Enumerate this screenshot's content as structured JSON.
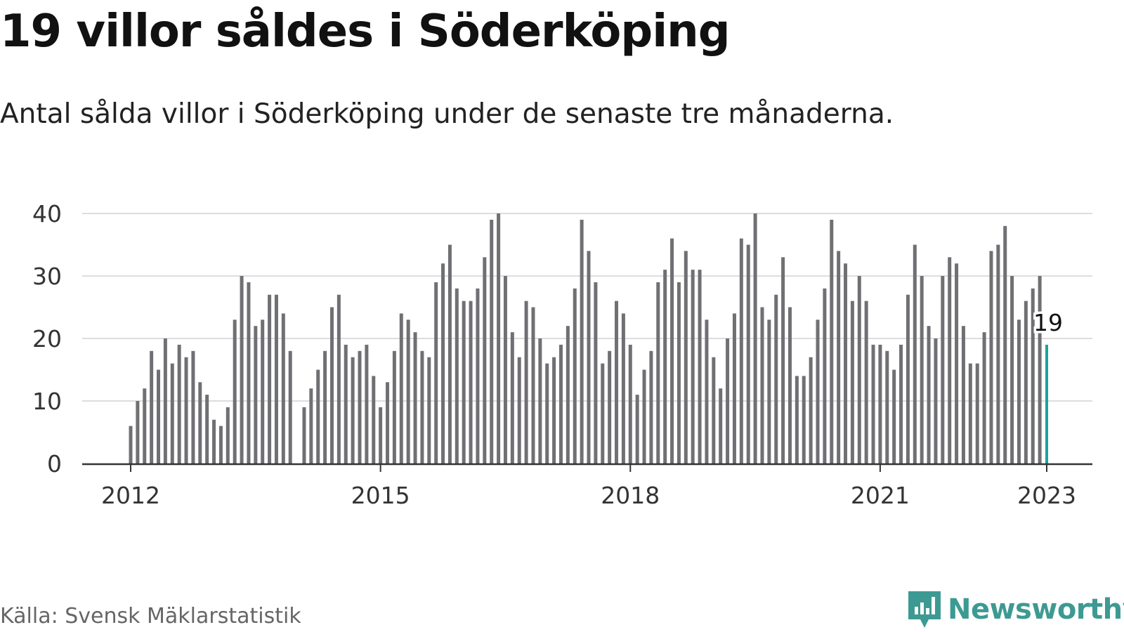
{
  "header": {
    "title": "19 villor såldes i Söderköping",
    "subtitle": "Antal sålda villor i Söderköping under de senaste tre månaderna."
  },
  "footer": {
    "source": "Källa: Svensk Mäklarstatistik",
    "brand": "Newsworthy"
  },
  "colors": {
    "bar": "#707074",
    "highlight": "#1aa59b",
    "grid": "#dddddd",
    "axis": "#333333",
    "brand": "#3d9a92"
  },
  "chart_data": {
    "type": "bar",
    "title": "19 villor såldes i Söderköping",
    "subtitle": "Antal sålda villor i Söderköping under de senaste tre månaderna.",
    "x_start": "2012-01",
    "x_end": "2023-01",
    "x_ticks": [
      "2012",
      "2015",
      "2018",
      "2021",
      "2023"
    ],
    "y_ticks": [
      0,
      10,
      20,
      30,
      40
    ],
    "ylim": [
      0,
      40
    ],
    "grid": true,
    "highlight_label": "19",
    "values": [
      6,
      10,
      12,
      18,
      15,
      20,
      16,
      19,
      17,
      18,
      13,
      11,
      7,
      6,
      9,
      23,
      30,
      29,
      22,
      23,
      27,
      27,
      24,
      18,
      null,
      9,
      12,
      15,
      18,
      25,
      27,
      19,
      17,
      18,
      19,
      14,
      9,
      13,
      18,
      24,
      23,
      21,
      18,
      17,
      29,
      32,
      35,
      28,
      26,
      26,
      28,
      33,
      39,
      40,
      30,
      21,
      17,
      26,
      25,
      20,
      16,
      17,
      19,
      22,
      28,
      39,
      34,
      29,
      16,
      18,
      26,
      24,
      19,
      11,
      15,
      18,
      29,
      31,
      36,
      29,
      34,
      31,
      31,
      23,
      17,
      12,
      20,
      24,
      36,
      35,
      40,
      25,
      23,
      27,
      33,
      25,
      14,
      14,
      17,
      23,
      28,
      39,
      34,
      32,
      26,
      30,
      26,
      19,
      19,
      18,
      15,
      19,
      27,
      35,
      30,
      22,
      20,
      30,
      33,
      32,
      22,
      16,
      16,
      21,
      34,
      35,
      38,
      30,
      23,
      26,
      28,
      30,
      19
    ]
  }
}
